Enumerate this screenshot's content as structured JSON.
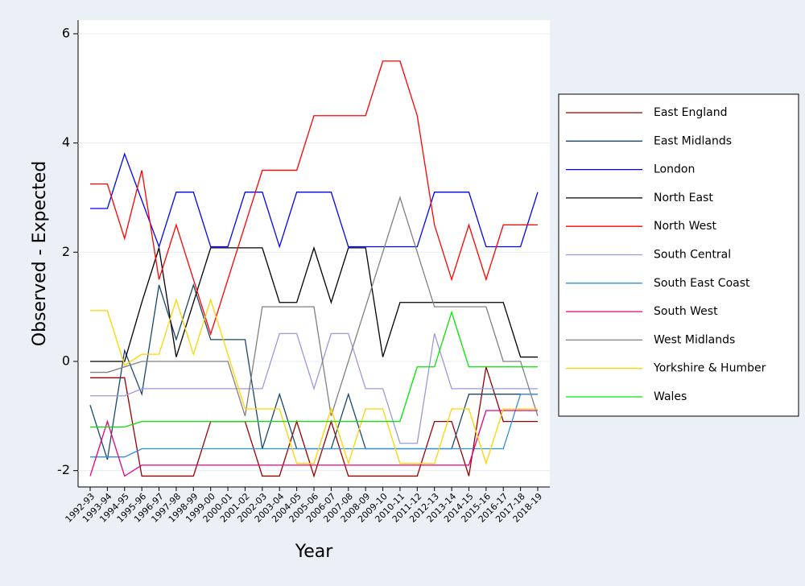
{
  "chart_data": {
    "type": "line",
    "y_label": "Observed - Expected",
    "x_label": "Year",
    "categories": [
      "1992-93",
      "1993-94",
      "1994-95",
      "1995-96",
      "1996-97",
      "1997-98",
      "1998-99",
      "1999-00",
      "2000-01",
      "2001-02",
      "2002-03",
      "2003-04",
      "2004-05",
      "2005-06",
      "2006-07",
      "2007-08",
      "2008-09",
      "2009-10",
      "2010-11",
      "2011-12",
      "2012-13",
      "2013-14",
      "2014-15",
      "2015-16",
      "2016-17",
      "2017-18",
      "2018-19"
    ],
    "ylim": [
      -2.3,
      6.25
    ],
    "yticks": [
      -2,
      0,
      2,
      4,
      6
    ],
    "grid": true,
    "legend": "right",
    "series": [
      {
        "name": "East England",
        "color": "#990000",
        "values": [
          -0.3,
          -0.3,
          -0.3,
          -2.1,
          -2.1,
          -2.1,
          -2.1,
          -1.1,
          -1.1,
          -1.1,
          -2.1,
          -2.1,
          -1.1,
          -2.1,
          -1.1,
          -2.1,
          -2.1,
          -2.1,
          -2.1,
          -2.1,
          -1.1,
          -1.1,
          -2.1,
          -0.1,
          -1.1,
          -1.1,
          -1.1
        ]
      },
      {
        "name": "East Midlands",
        "color": "#1a476f",
        "values": [
          -0.8,
          -1.8,
          0.2,
          -0.6,
          1.4,
          0.4,
          1.4,
          0.4,
          0.4,
          0.4,
          -1.6,
          -0.6,
          -1.6,
          -1.6,
          -1.6,
          -0.6,
          -1.6,
          -1.6,
          -1.6,
          -1.6,
          -1.6,
          -1.6,
          -0.6,
          -0.6,
          -0.6,
          -0.6,
          -0.6
        ]
      },
      {
        "name": "London",
        "color": "#0000ff",
        "values": [
          2.8,
          2.8,
          3.8,
          2.95,
          2.1,
          3.1,
          3.1,
          2.1,
          2.1,
          3.1,
          3.1,
          2.1,
          3.1,
          3.1,
          3.1,
          2.1,
          2.1,
          2.1,
          2.1,
          2.1,
          3.1,
          3.1,
          3.1,
          2.1,
          2.1,
          2.1,
          3.1
        ]
      },
      {
        "name": "North East",
        "color": "#000000",
        "values": [
          0,
          0,
          0,
          1.08,
          2.08,
          0.08,
          1.08,
          2.08,
          2.08,
          2.08,
          2.08,
          1.08,
          1.08,
          2.08,
          1.08,
          2.08,
          2.08,
          0.08,
          1.08,
          1.08,
          1.08,
          1.08,
          1.08,
          1.08,
          1.08,
          0.08,
          0.08
        ]
      },
      {
        "name": "North West",
        "color": "#ff0000",
        "values": [
          3.25,
          3.25,
          2.25,
          3.5,
          1.5,
          2.5,
          1.5,
          0.5,
          1.5,
          2.5,
          3.5,
          3.5,
          3.5,
          4.5,
          4.5,
          4.5,
          4.5,
          5.5,
          5.5,
          4.5,
          2.5,
          1.5,
          2.5,
          1.5,
          2.5,
          2.5,
          2.5
        ]
      },
      {
        "name": "South Central",
        "color": "#9999dd",
        "values": [
          -0.63,
          -0.63,
          -0.63,
          -0.5,
          -0.5,
          -0.5,
          -0.5,
          -0.5,
          -0.5,
          -0.5,
          -0.5,
          0.51,
          0.51,
          -0.5,
          0.51,
          0.51,
          -0.5,
          -0.5,
          -1.5,
          -1.5,
          0.51,
          -0.5,
          -0.5,
          -0.5,
          -0.5,
          -0.5,
          -0.5
        ]
      },
      {
        "name": "South East Coast",
        "color": "#2e8de6",
        "values": [
          -1.75,
          -1.75,
          -1.75,
          -1.6,
          -1.6,
          -1.6,
          -1.6,
          -1.6,
          -1.6,
          -1.6,
          -1.6,
          -1.6,
          -1.6,
          -1.6,
          -1.6,
          -1.6,
          -1.6,
          -1.6,
          -1.6,
          -1.6,
          -1.6,
          -1.6,
          -1.6,
          -1.6,
          -1.6,
          -0.6,
          -0.6
        ]
      },
      {
        "name": "South West",
        "color": "#e6007e",
        "values": [
          -2.1,
          -1.1,
          -2.1,
          -1.9,
          -1.9,
          -1.9,
          -1.9,
          -1.9,
          -1.9,
          -1.9,
          -1.9,
          -1.9,
          -1.9,
          -1.9,
          -1.9,
          -1.9,
          -1.9,
          -1.9,
          -1.9,
          -1.9,
          -1.9,
          -1.9,
          -1.9,
          -0.9,
          -0.9,
          -0.9,
          -0.9
        ]
      },
      {
        "name": "West Midlands",
        "color": "#808080",
        "values": [
          -0.2,
          -0.2,
          -0.1,
          0,
          0,
          0,
          0,
          0,
          0,
          -1,
          1,
          1,
          1,
          1,
          -1,
          0,
          1,
          2,
          3,
          2,
          1,
          1,
          1,
          1,
          0,
          0,
          -1
        ]
      },
      {
        "name": "Yorkshire & Humber",
        "color": "#ffd400",
        "values": [
          0.93,
          0.93,
          -0.07,
          0.13,
          0.13,
          1.13,
          0.13,
          1.13,
          0.13,
          -0.87,
          -0.87,
          -0.87,
          -1.87,
          -1.87,
          -0.87,
          -1.87,
          -0.87,
          -0.87,
          -1.87,
          -1.87,
          -1.87,
          -0.87,
          -0.87,
          -1.87,
          -0.87,
          -0.87,
          -0.87
        ]
      },
      {
        "name": "Wales",
        "color": "#00e600",
        "values": [
          -1.2,
          -1.2,
          -1.2,
          -1.1,
          -1.1,
          -1.1,
          -1.1,
          -1.1,
          -1.1,
          -1.1,
          -1.1,
          -1.1,
          -1.1,
          -1.1,
          -1.1,
          -1.1,
          -1.1,
          -1.1,
          -1.1,
          -0.1,
          -0.1,
          0.9,
          -0.1,
          -0.1,
          -0.1,
          -0.1,
          -0.1
        ]
      }
    ]
  }
}
